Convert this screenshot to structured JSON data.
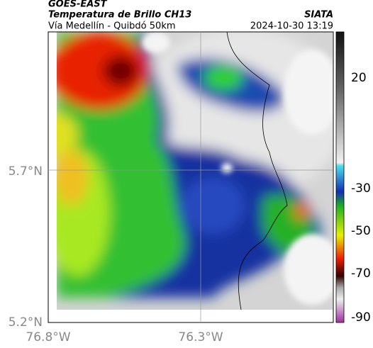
{
  "header": {
    "title": "GOES-EAST",
    "subtitle": "Temperatura de Brillo CH13",
    "route": "Vía Medellín - Quibdó 50km",
    "source": "SIATA",
    "datetime": "2024-10-30 13:19"
  },
  "axes": {
    "lat_labels": [
      "5.7°N",
      "5.2°N"
    ],
    "lon_labels": [
      "76.8°W",
      "76.3°W"
    ]
  },
  "colorbar": {
    "ticks": [
      20,
      -30,
      -50,
      -70,
      -90
    ]
  }
}
